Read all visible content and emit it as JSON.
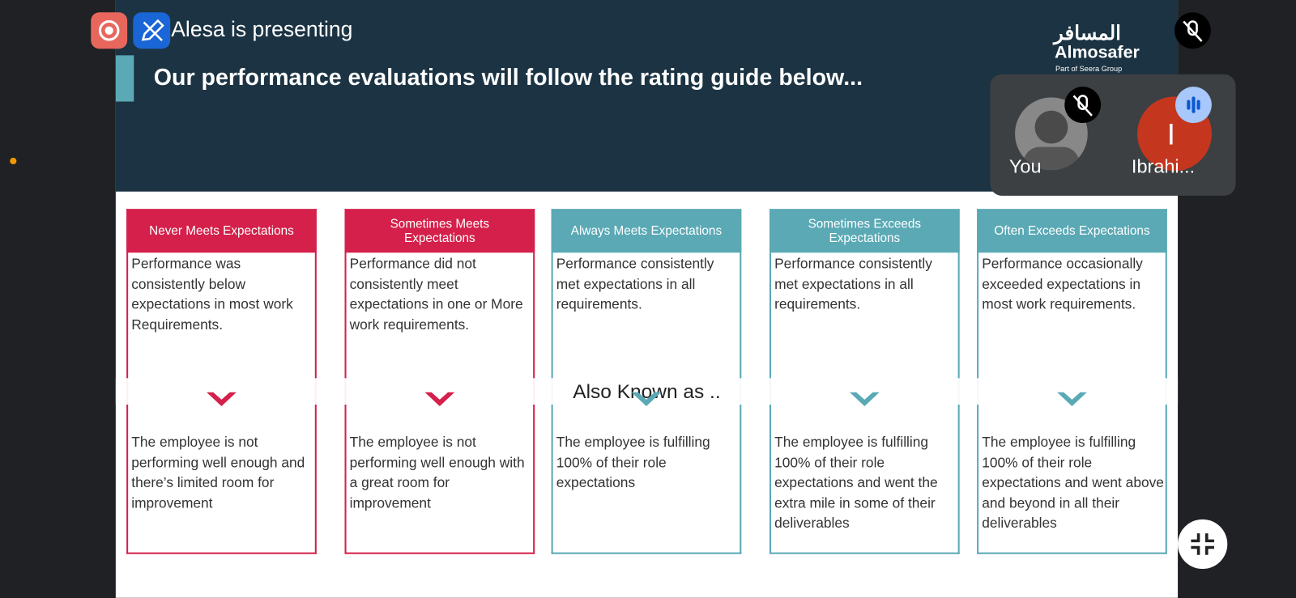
{
  "meeting": {
    "presenter_banner": "Alesa is presenting",
    "participants": [
      {
        "name": "You"
      },
      {
        "name": "Ibrahi...",
        "initial": "I"
      }
    ]
  },
  "slide": {
    "title": "Our performance evaluations will follow the rating guide below...",
    "logo": {
      "arabic": "المسافر",
      "name": "Almosafer",
      "tagline": "Part of Seera Group"
    },
    "band_label": "Also Known as ..",
    "ratings": [
      {
        "label": "Never Meets Expectations",
        "description": "Performance was consistently below expectations in most work Requirements.",
        "meaning": "The employee is not performing well enough and there’s limited room for improvement"
      },
      {
        "label": "Sometimes Meets Expectations",
        "description": "Performance did not consistently meet expectations in one or More work requirements.",
        "meaning": "The employee is not performing well enough with a great room for improvement"
      },
      {
        "label": "Always Meets Expectations",
        "description": "Performance consistently met expectations in all requirements.",
        "meaning": "The employee is fulfilling 100% of their role expectations"
      },
      {
        "label": "Sometimes Exceeds Expectations",
        "description": "Performance consistently met expectations in all requirements.",
        "meaning": "The employee is fulfilling 100% of their role expectations and went the extra mile in some of their deliverables"
      },
      {
        "label": "Often Exceeds Expectations",
        "description": "Performance occasionally exceeded expectations in most work requirements.",
        "meaning": "The employee is fulfilling 100% of their role expectations and went above and beyond in all their deliverables"
      }
    ]
  }
}
